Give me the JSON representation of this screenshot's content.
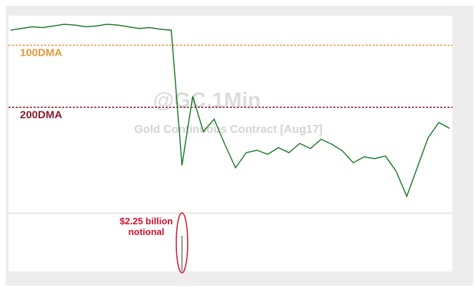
{
  "chart_data": {
    "type": "line",
    "title": "@GC,1Min",
    "subtitle": "Gold Continuous Contract [Aug17]",
    "annotation": "$2.25 billion notional",
    "color": "#1a7a2a",
    "ylim": [
      1235,
      1259
    ],
    "values": [
      1256.6,
      1256.8,
      1257.0,
      1256.9,
      1257.1,
      1257.3,
      1257.2,
      1257.0,
      1257.1,
      1257.3,
      1257.2,
      1257.0,
      1256.8,
      1256.9,
      1256.7,
      1256.6,
      1240.5,
      1248.7,
      1244.5,
      1246.0,
      1243.0,
      1240.2,
      1242.0,
      1242.3,
      1241.8,
      1242.6,
      1242.0,
      1243.1,
      1242.5,
      1243.6,
      1243.0,
      1242.2,
      1240.8,
      1241.5,
      1241.3,
      1241.6,
      1239.8,
      1236.8,
      1240.3,
      1243.8,
      1245.6,
      1244.9
    ],
    "reference_lines": [
      {
        "label": "100DMA",
        "value": 1254.8,
        "color": "#e8963a"
      },
      {
        "label": "200DMA",
        "value": 1247.4,
        "color": "#8b1a2b"
      }
    ]
  }
}
